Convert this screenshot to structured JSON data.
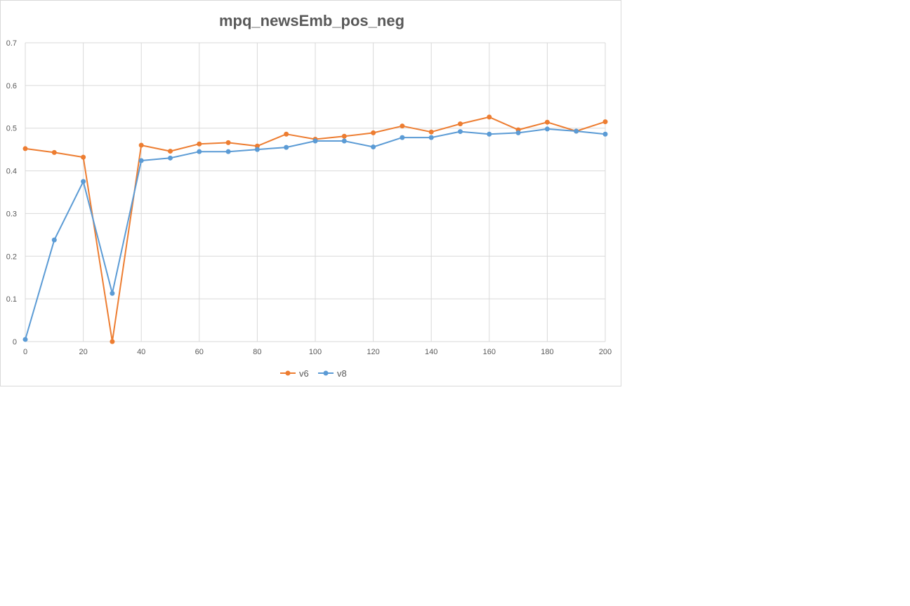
{
  "chart_data": {
    "type": "line",
    "title": "mpq_newsEmb_pos_neg",
    "xlabel": "",
    "ylabel": "",
    "x": [
      0,
      10,
      20,
      30,
      40,
      50,
      60,
      70,
      80,
      90,
      100,
      110,
      120,
      130,
      140,
      150,
      160,
      170,
      180,
      190,
      200
    ],
    "xlim": [
      0,
      200
    ],
    "ylim": [
      0,
      0.7
    ],
    "x_ticks": [
      0,
      20,
      40,
      60,
      80,
      100,
      120,
      140,
      160,
      180,
      200
    ],
    "y_ticks": [
      0,
      0.1,
      0.2,
      0.3,
      0.4,
      0.5,
      0.6,
      0.7
    ],
    "grid": true,
    "legend_position": "bottom",
    "series": [
      {
        "name": "v6",
        "color": "#ED7D31",
        "values": [
          0.452,
          0.443,
          0.432,
          0.0,
          0.46,
          0.446,
          0.463,
          0.466,
          0.458,
          0.486,
          0.474,
          0.481,
          0.489,
          0.505,
          0.491,
          0.51,
          0.526,
          0.496,
          0.514,
          0.493,
          0.515
        ]
      },
      {
        "name": "v8",
        "color": "#5B9BD5",
        "values": [
          0.005,
          0.238,
          0.375,
          0.113,
          0.424,
          0.43,
          0.445,
          0.445,
          0.45,
          0.455,
          0.47,
          0.47,
          0.456,
          0.478,
          0.478,
          0.492,
          0.486,
          0.489,
          0.498,
          0.493,
          0.486
        ]
      }
    ]
  }
}
